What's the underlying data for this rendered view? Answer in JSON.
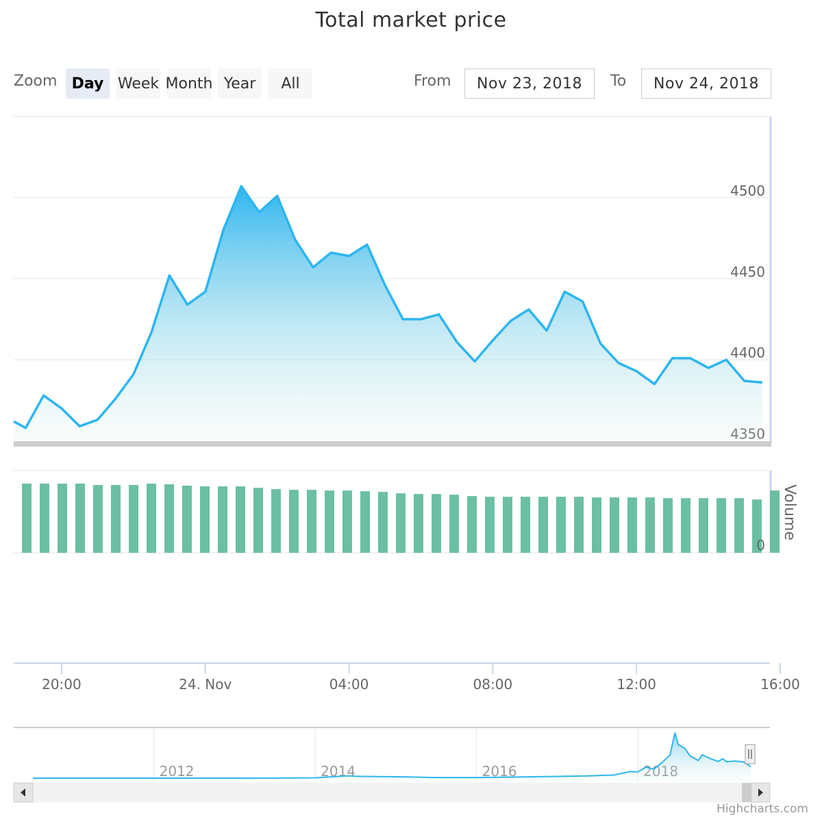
{
  "chart_data": {
    "type": "area",
    "title": "Total market price",
    "range_selector": {
      "zoom_label": "Zoom",
      "buttons": [
        "Day",
        "Week",
        "Month",
        "Year",
        "All"
      ],
      "selected": "Day",
      "from_label": "From",
      "from_value": "Nov 23, 2018",
      "to_label": "To",
      "to_value": "Nov 24, 2018"
    },
    "x_range": [
      "2018-11-23T18:40",
      "2018-11-24T16:00"
    ],
    "x_ticks": [
      {
        "t": "2018-11-23T20:00",
        "label": "20:00"
      },
      {
        "t": "2018-11-24T00:00",
        "label": "24. Nov"
      },
      {
        "t": "2018-11-24T04:00",
        "label": "04:00"
      },
      {
        "t": "2018-11-24T08:00",
        "label": "08:00"
      },
      {
        "t": "2018-11-24T12:00",
        "label": "12:00"
      },
      {
        "t": "2018-11-24T16:00",
        "label": "16:00"
      }
    ],
    "price": {
      "ylim": [
        4349,
        4550
      ],
      "ticks": [
        4350,
        4400,
        4450,
        4500
      ],
      "color": "#2db5f0",
      "points": [
        [
          "2018-11-23T18:40",
          4362
        ],
        [
          "2018-11-23T19:00",
          4358
        ],
        [
          "2018-11-23T19:30",
          4378
        ],
        [
          "2018-11-23T20:00",
          4370
        ],
        [
          "2018-11-23T20:30",
          4359
        ],
        [
          "2018-11-23T21:00",
          4363
        ],
        [
          "2018-11-23T21:30",
          4376
        ],
        [
          "2018-11-23T22:00",
          4391
        ],
        [
          "2018-11-23T22:30",
          4417
        ],
        [
          "2018-11-23T23:00",
          4452
        ],
        [
          "2018-11-23T23:30",
          4434
        ],
        [
          "2018-11-24T00:00",
          4442
        ],
        [
          "2018-11-24T00:30",
          4480
        ],
        [
          "2018-11-24T01:00",
          4507
        ],
        [
          "2018-11-24T01:30",
          4491
        ],
        [
          "2018-11-24T02:00",
          4501
        ],
        [
          "2018-11-24T02:30",
          4474
        ],
        [
          "2018-11-24T03:00",
          4457
        ],
        [
          "2018-11-24T03:30",
          4466
        ],
        [
          "2018-11-24T04:00",
          4464
        ],
        [
          "2018-11-24T04:30",
          4471
        ],
        [
          "2018-11-24T05:00",
          4446
        ],
        [
          "2018-11-24T05:30",
          4425
        ],
        [
          "2018-11-24T06:00",
          4425
        ],
        [
          "2018-11-24T06:30",
          4428
        ],
        [
          "2018-11-24T07:00",
          4411
        ],
        [
          "2018-11-24T07:30",
          4399
        ],
        [
          "2018-11-24T08:00",
          4412
        ],
        [
          "2018-11-24T08:30",
          4424
        ],
        [
          "2018-11-24T09:00",
          4431
        ],
        [
          "2018-11-24T09:30",
          4418
        ],
        [
          "2018-11-24T10:00",
          4442
        ],
        [
          "2018-11-24T10:30",
          4436
        ],
        [
          "2018-11-24T11:00",
          4410
        ],
        [
          "2018-11-24T11:30",
          4398
        ],
        [
          "2018-11-24T12:00",
          4393
        ],
        [
          "2018-11-24T12:30",
          4385
        ],
        [
          "2018-11-24T13:00",
          4401
        ],
        [
          "2018-11-24T13:30",
          4401
        ],
        [
          "2018-11-24T14:00",
          4395
        ],
        [
          "2018-11-24T14:30",
          4400
        ],
        [
          "2018-11-24T15:00",
          4387
        ],
        [
          "2018-11-24T15:30",
          4386
        ]
      ]
    },
    "volume": {
      "axis_label": "Volume",
      "ticks": [
        0
      ],
      "color": "#6bbfa3",
      "values": [
        1.0,
        1.0,
        1.0,
        1.0,
        0.98,
        0.98,
        0.98,
        1.0,
        0.99,
        0.97,
        0.96,
        0.96,
        0.96,
        0.94,
        0.92,
        0.91,
        0.91,
        0.9,
        0.9,
        0.89,
        0.88,
        0.86,
        0.85,
        0.85,
        0.84,
        0.82,
        0.81,
        0.81,
        0.81,
        0.81,
        0.81,
        0.81,
        0.8,
        0.8,
        0.8,
        0.8,
        0.79,
        0.79,
        0.79,
        0.79,
        0.79,
        0.77,
        0.9
      ]
    },
    "navigator": {
      "year_labels": [
        "2012",
        "2014",
        "2016",
        "2018"
      ],
      "year_ticks": [
        2011.5,
        2013.5,
        2015.5,
        2017.5
      ],
      "x_range": [
        2010.0,
        2018.9
      ],
      "ylim": [
        0,
        19000
      ],
      "series": [
        [
          2010.0,
          0
        ],
        [
          2011.0,
          3
        ],
        [
          2011.5,
          10
        ],
        [
          2012.0,
          5
        ],
        [
          2012.5,
          8
        ],
        [
          2013.0,
          30
        ],
        [
          2013.5,
          120
        ],
        [
          2013.9,
          900
        ],
        [
          2014.0,
          700
        ],
        [
          2014.3,
          600
        ],
        [
          2014.6,
          500
        ],
        [
          2015.0,
          250
        ],
        [
          2015.5,
          230
        ],
        [
          2016.0,
          420
        ],
        [
          2016.5,
          650
        ],
        [
          2016.9,
          900
        ],
        [
          2017.0,
          1000
        ],
        [
          2017.2,
          1200
        ],
        [
          2017.4,
          2500
        ],
        [
          2017.5,
          2400
        ],
        [
          2017.6,
          4200
        ],
        [
          2017.7,
          3500
        ],
        [
          2017.8,
          6000
        ],
        [
          2017.9,
          9000
        ],
        [
          2017.96,
          17500
        ],
        [
          2018.0,
          13000
        ],
        [
          2018.08,
          11500
        ],
        [
          2018.15,
          8500
        ],
        [
          2018.25,
          6800
        ],
        [
          2018.3,
          9000
        ],
        [
          2018.4,
          7500
        ],
        [
          2018.5,
          6400
        ],
        [
          2018.55,
          7500
        ],
        [
          2018.6,
          6300
        ],
        [
          2018.7,
          6600
        ],
        [
          2018.8,
          6300
        ],
        [
          2018.85,
          5500
        ],
        [
          2018.9,
          4400
        ]
      ]
    }
  }
}
